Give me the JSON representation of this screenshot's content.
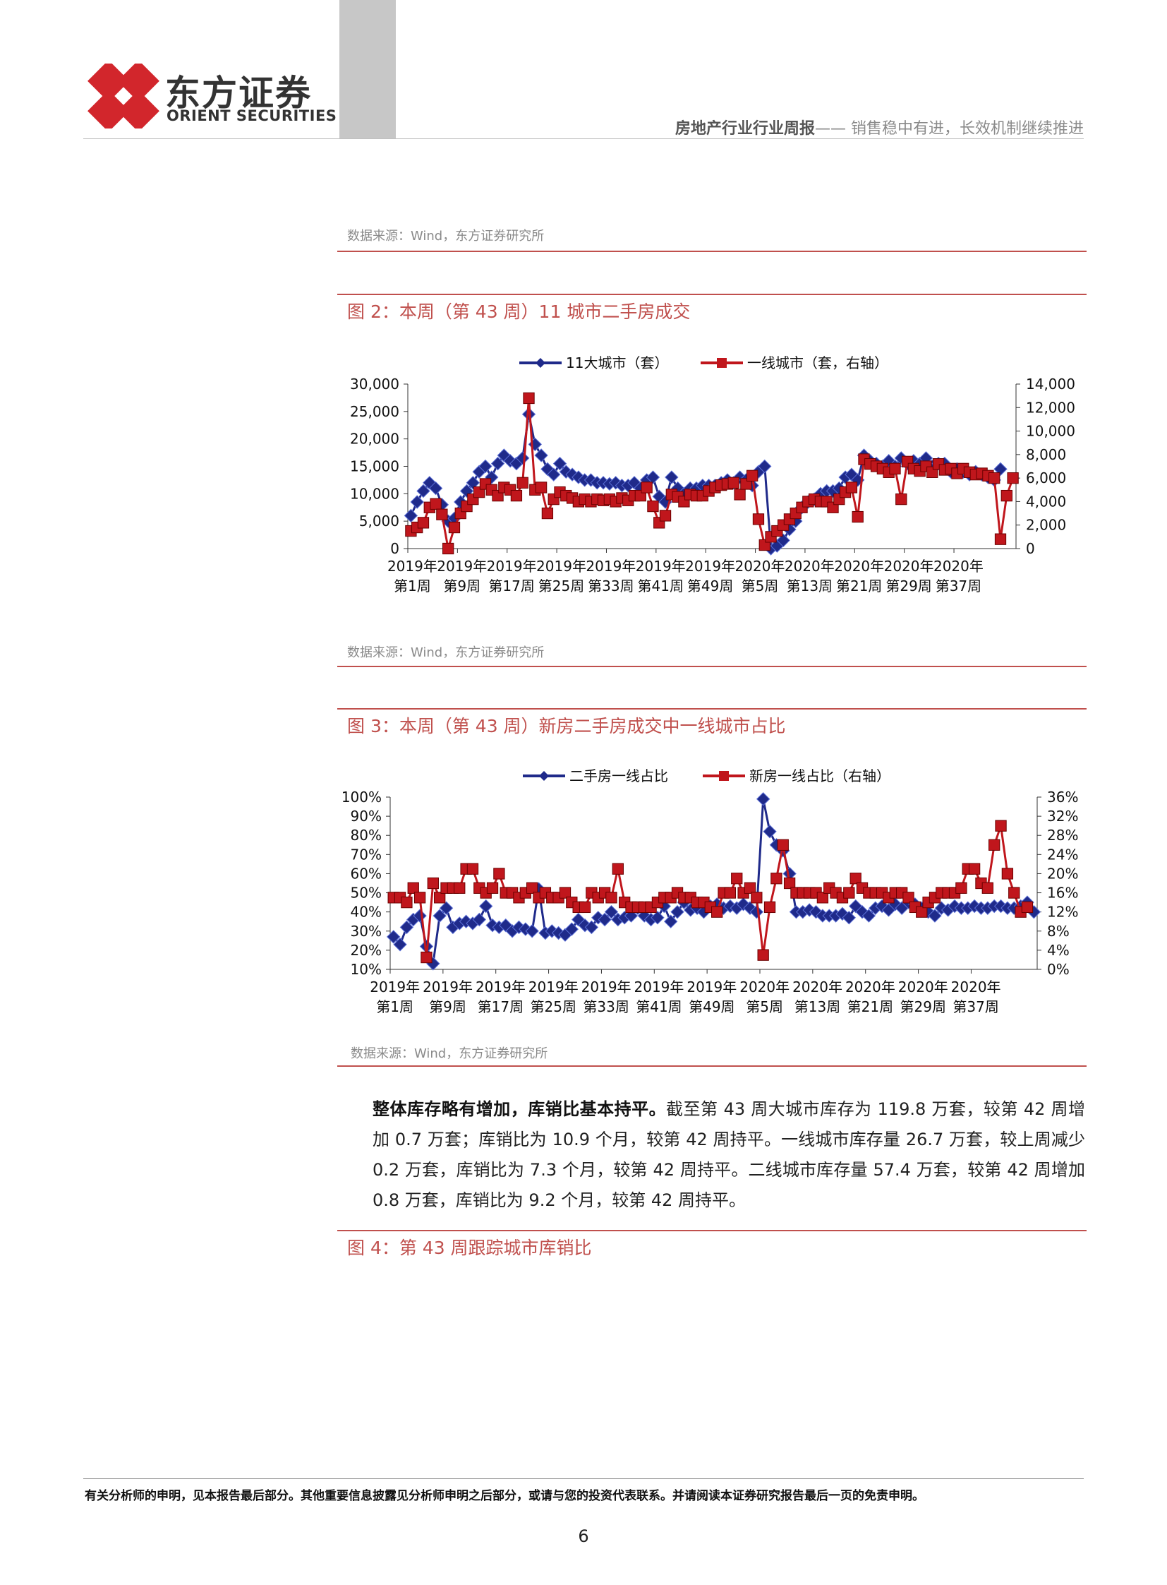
{
  "header": {
    "logo_cn": "东方证券",
    "logo_en": "ORIENT SECURITIES",
    "report_type": "房地产行业行业周报",
    "report_subtitle": "—— 销售稳中有进，长效机制继续推进"
  },
  "top_source": "数据来源：Wind，东方证券研究所",
  "figures": [
    {
      "title": "图 2：本周（第 43 周）11 城市二手房成交",
      "source": "数据来源：Wind，东方证券研究所"
    },
    {
      "title": "图 3：本周（第 43 周）新房二手房成交中一线城市占比",
      "source": "数据来源：Wind，东方证券研究所"
    },
    {
      "title": "图 4：第 43 周跟踪城市库销比"
    }
  ],
  "paragraph": {
    "lead": "整体库存略有增加，库销比基本持平。",
    "body": "截至第 43 周大城市库存为 119.8 万套，较第 42 周增加 0.7 万套；库销比为 10.9 个月，较第 42 周持平。一线城市库存量 26.7 万套，较上周减少 0.2 万套，库销比为 7.3 个月，较第 42 周持平。二线城市库存量 57.4 万套，较第 42 周增加 0.8 万套，库销比为 9.2 个月，较第 42 周持平。"
  },
  "footer": {
    "disclaimer": "有关分析师的申明，见本报告最后部分。其他重要信息披露见分析师申明之后部分，或请与您的投资代表联系。并请阅读本证券研究报告最后一页的免责申明。",
    "page_number": "6"
  },
  "colors": {
    "accent_red": "#c0504d",
    "series_blue": "#1f2a8a",
    "series_red": "#c0161c"
  },
  "chart_data": [
    {
      "type": "line",
      "x_tick_labels": [
        [
          "2019年",
          "第1周"
        ],
        [
          "2019年",
          "第9周"
        ],
        [
          "2019年",
          "第17周"
        ],
        [
          "2019年",
          "第25周"
        ],
        [
          "2019年",
          "第33周"
        ],
        [
          "2019年",
          "第41周"
        ],
        [
          "2019年",
          "第49周"
        ],
        [
          "2020年",
          "第5周"
        ],
        [
          "2020年",
          "第13周"
        ],
        [
          "2020年",
          "第21周"
        ],
        [
          "2020年",
          "第29周"
        ],
        [
          "2020年",
          "第37周"
        ]
      ],
      "x_ticks_every": 8,
      "ylim": [
        0,
        30000
      ],
      "yticks": [
        "0",
        "5,000",
        "10,000",
        "15,000",
        "20,000",
        "25,000",
        "30,000"
      ],
      "y2lim": [
        0,
        14000
      ],
      "y2ticks": [
        "0",
        "2,000",
        "4,000",
        "6,000",
        "8,000",
        "10,000",
        "12,000",
        "14,000"
      ],
      "legend_position": "top",
      "series": [
        {
          "name": "11大城市（套）",
          "axis": "left",
          "marker": "diamond",
          "color": "#1f2a8a",
          "values": [
            6000,
            8500,
            10500,
            12000,
            11000,
            8000,
            5000,
            5500,
            8500,
            10500,
            12000,
            14000,
            15000,
            13000,
            15500,
            17000,
            16000,
            15500,
            16500,
            24500,
            19000,
            17000,
            14500,
            13500,
            15500,
            14000,
            13500,
            13000,
            12500,
            12500,
            12000,
            12000,
            11800,
            12000,
            11500,
            11500,
            12000,
            11000,
            12500,
            13000,
            9500,
            8500,
            13000,
            11000,
            10000,
            11000,
            11000,
            11500,
            11500,
            11500,
            12000,
            12500,
            12000,
            13000,
            12500,
            11500,
            14000,
            15000,
            0,
            500,
            1500,
            3500,
            5000,
            7500,
            8500,
            9000,
            10000,
            10500,
            10500,
            11000,
            13000,
            13500,
            12500,
            17000,
            16000,
            15500,
            15000,
            16000,
            15000,
            16500,
            15500,
            16000,
            15500,
            16500,
            15000,
            15500,
            15500,
            14000,
            14500,
            14000,
            13500,
            14000,
            13500,
            13000,
            12500,
            14500
          ]
        },
        {
          "name": "一线城市（套，右轴）",
          "axis": "right",
          "marker": "square",
          "color": "#c0161c",
          "values": [
            1500,
            1800,
            2200,
            3500,
            3800,
            2900,
            0,
            1800,
            3000,
            3600,
            4200,
            4800,
            5500,
            5000,
            4500,
            5200,
            5000,
            4500,
            5600,
            12800,
            5000,
            5200,
            3000,
            4200,
            4800,
            4500,
            4300,
            4000,
            4200,
            4000,
            4200,
            4100,
            4200,
            4000,
            4300,
            4100,
            4500,
            4500,
            5200,
            3600,
            2200,
            2800,
            4600,
            4400,
            4000,
            4600,
            4500,
            4500,
            4900,
            5200,
            5400,
            5500,
            5600,
            4600,
            5500,
            6200,
            2500,
            300,
            1000,
            1500,
            2000,
            2500,
            3000,
            3500,
            4000,
            4200,
            4000,
            4000,
            3500,
            4200,
            4800,
            5200,
            2700,
            7600,
            7200,
            7000,
            6800,
            6500,
            6800,
            4200,
            7400,
            6800,
            6600,
            7000,
            6500,
            7200,
            6700,
            6800,
            6400,
            6800,
            6500,
            6300,
            6400,
            6200,
            6000,
            800,
            4500,
            6000
          ]
        }
      ]
    },
    {
      "type": "line",
      "x_tick_labels": [
        [
          "2019年",
          "第1周"
        ],
        [
          "2019年",
          "第9周"
        ],
        [
          "2019年",
          "第17周"
        ],
        [
          "2019年",
          "第25周"
        ],
        [
          "2019年",
          "第33周"
        ],
        [
          "2019年",
          "第41周"
        ],
        [
          "2019年",
          "第49周"
        ],
        [
          "2020年",
          "第5周"
        ],
        [
          "2020年",
          "第13周"
        ],
        [
          "2020年",
          "第21周"
        ],
        [
          "2020年",
          "第29周"
        ],
        [
          "2020年",
          "第37周"
        ]
      ],
      "x_ticks_every": 8,
      "ylim": [
        10,
        100
      ],
      "yticks": [
        "10%",
        "20%",
        "30%",
        "40%",
        "50%",
        "60%",
        "70%",
        "80%",
        "90%",
        "100%"
      ],
      "y2lim": [
        0,
        36
      ],
      "y2ticks": [
        "0%",
        "4%",
        "8%",
        "12%",
        "16%",
        "20%",
        "24%",
        "28%",
        "32%",
        "36%"
      ],
      "legend_position": "top",
      "series": [
        {
          "name": "二手房一线占比",
          "axis": "left",
          "marker": "diamond",
          "color": "#1f2a8a",
          "values": [
            27,
            23,
            32,
            36,
            38,
            22,
            13,
            38,
            42,
            32,
            34,
            35,
            34,
            36,
            43,
            33,
            32,
            33,
            30,
            32,
            31,
            30,
            52,
            29,
            30,
            29,
            28,
            31,
            36,
            33,
            32,
            37,
            36,
            40,
            36,
            37,
            38,
            42,
            38,
            36,
            37,
            43,
            35,
            40,
            45,
            41,
            42,
            40,
            43,
            44,
            42,
            43,
            42,
            44,
            42,
            40,
            99,
            82,
            75,
            72,
            60,
            40,
            40,
            41,
            40,
            38,
            38,
            38,
            39,
            37,
            43,
            40,
            38,
            42,
            43,
            41,
            44,
            42,
            45,
            44,
            42,
            40,
            38,
            42,
            41,
            43,
            42,
            42,
            43,
            42,
            42,
            43,
            43,
            42,
            42,
            43,
            45,
            40
          ]
        },
        {
          "name": "新房一线占比（右轴）",
          "axis": "right",
          "marker": "square",
          "color": "#c0161c",
          "values": [
            15,
            15,
            14,
            17,
            15,
            2.5,
            18,
            15,
            17,
            17,
            17,
            21,
            21,
            17,
            16,
            17,
            20,
            16,
            16,
            15,
            16,
            17,
            15,
            16,
            15,
            15,
            16,
            14,
            13,
            13,
            16,
            15,
            16,
            15,
            21,
            14,
            13,
            13,
            13,
            13,
            14,
            15,
            15,
            16,
            15,
            15,
            14,
            14,
            13,
            12,
            16,
            16,
            19,
            16,
            17,
            15,
            3,
            13,
            19,
            26,
            18,
            16,
            16,
            16,
            16,
            15,
            17,
            16,
            15,
            16,
            19,
            17,
            16,
            16,
            16,
            15,
            16,
            16,
            15,
            13,
            12,
            14,
            15,
            16,
            16,
            16,
            17,
            21,
            21,
            18,
            17,
            26,
            30,
            20,
            16,
            12,
            13
          ]
        }
      ]
    }
  ]
}
